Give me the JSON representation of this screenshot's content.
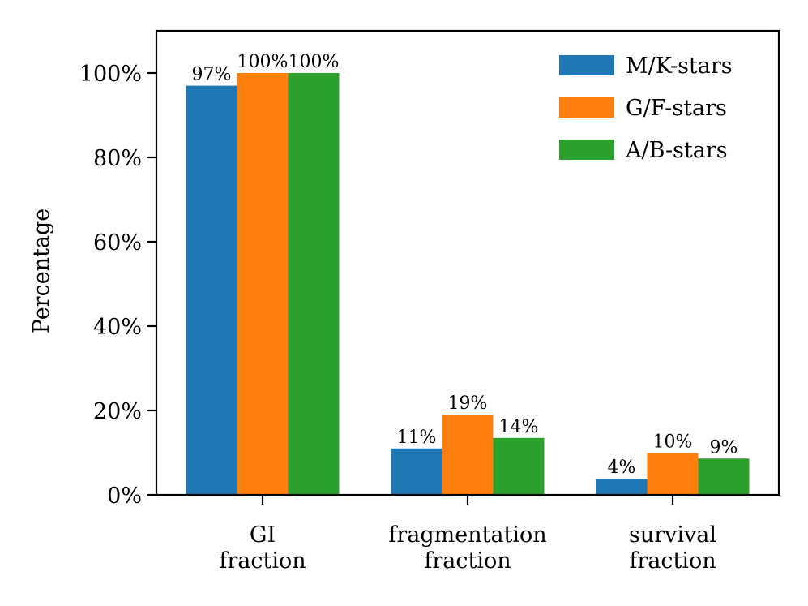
{
  "chart_data": {
    "type": "bar",
    "title": "",
    "xlabel": "",
    "ylabel": "Percentage",
    "ylim": [
      0,
      110
    ],
    "yticks": [
      0,
      20,
      40,
      60,
      80,
      100
    ],
    "ytick_labels": [
      "0%",
      "20%",
      "40%",
      "60%",
      "80%",
      "100%"
    ],
    "categories": [
      [
        "GI",
        "fraction"
      ],
      [
        "fragmentation",
        "fraction"
      ],
      [
        "survival",
        "fraction"
      ]
    ],
    "series": [
      {
        "name": "M/K-stars",
        "color": "#1f77b4",
        "values": [
          97,
          11,
          3.8
        ],
        "labels": [
          "97%",
          "11%",
          "4%"
        ]
      },
      {
        "name": "G/F-stars",
        "color": "#ff7f0e",
        "values": [
          100,
          19,
          9.9
        ],
        "labels": [
          "100%",
          "19%",
          "10%"
        ]
      },
      {
        "name": "A/B-stars",
        "color": "#2ca02c",
        "values": [
          100,
          13.5,
          8.6
        ],
        "labels": [
          "100%",
          "14%",
          "9%"
        ]
      }
    ],
    "legend_position": "top-right",
    "grid": false
  }
}
